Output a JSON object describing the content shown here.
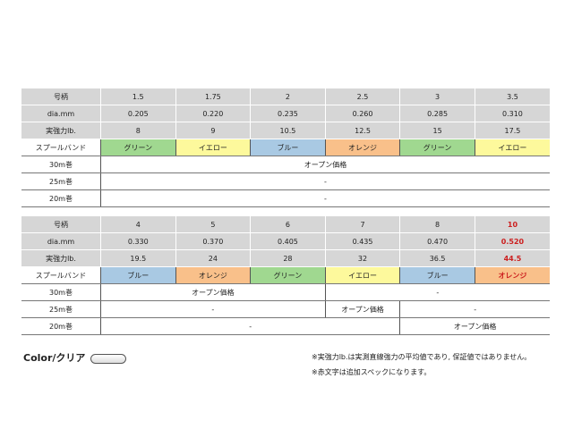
{
  "labels": {
    "size": "号柄",
    "dia": "dia.mm",
    "strength": "実強力lb.",
    "band": "スプールバンド",
    "m30": "30m巻",
    "m25": "25m巻",
    "m20": "20m巻"
  },
  "open_price": "オープン価格",
  "dash": "-",
  "table1": {
    "size": [
      "1.5",
      "1.75",
      "2",
      "2.5",
      "3",
      "3.5"
    ],
    "dia": [
      "0.205",
      "0.220",
      "0.235",
      "0.260",
      "0.285",
      "0.310"
    ],
    "strength": [
      "8",
      "9",
      "10.5",
      "12.5",
      "15",
      "17.5"
    ],
    "band": [
      "グリーン",
      "イエロー",
      "ブルー",
      "オレンジ",
      "グリーン",
      "イエロー"
    ]
  },
  "table2": {
    "size": [
      "4",
      "5",
      "6",
      "7",
      "8",
      "10"
    ],
    "dia": [
      "0.330",
      "0.370",
      "0.405",
      "0.435",
      "0.470",
      "0.520"
    ],
    "strength": [
      "19.5",
      "24",
      "28",
      "32",
      "36.5",
      "44.5"
    ],
    "band": [
      "ブルー",
      "オレンジ",
      "グリーン",
      "イエロー",
      "ブルー",
      "オレンジ"
    ]
  },
  "band_colors": {
    "green": "#a0d890",
    "yellow": "#fdf99c",
    "blue": "#a9c9e3",
    "orange": "#f9c08a"
  },
  "highlight_color": "#cc2020",
  "color_label": "Color/クリア",
  "notes": [
    "※実強力lb.は実測直線強力の平均値であり, 保証値ではありません。",
    "※赤文字は追加スペックになります。"
  ]
}
